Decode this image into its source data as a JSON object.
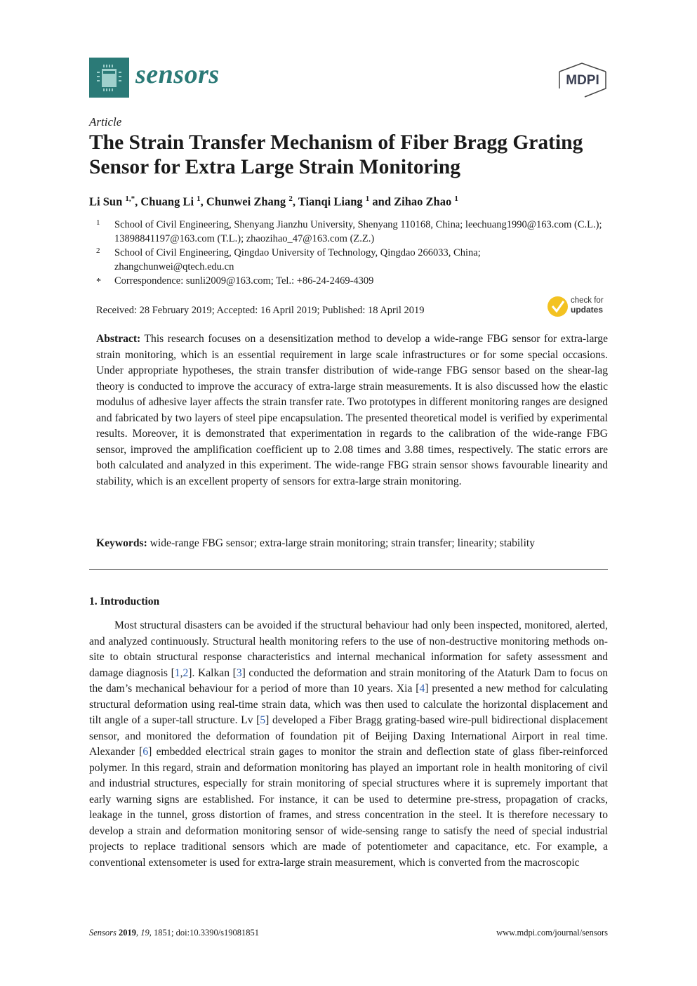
{
  "header": {
    "journal": "sensors",
    "publisher": "MDPI"
  },
  "article_type": "Article",
  "title": "The Strain Transfer Mechanism of Fiber Bragg Grating Sensor for Extra Large Strain Monitoring",
  "authors": [
    {
      "name": "Li Sun",
      "sup": "1,*"
    },
    {
      "name": "Chuang Li",
      "sup": "1"
    },
    {
      "name": "Chunwei Zhang",
      "sup": "2"
    },
    {
      "name": "Tianqi Liang",
      "sup": "1"
    },
    {
      "name": "Zihao Zhao",
      "sup": "1"
    }
  ],
  "author_sep": {
    "comma": ", ",
    "and": " and "
  },
  "affiliations": [
    {
      "mark": "1",
      "text": "School of Civil Engineering, Shenyang Jianzhu University, Shenyang 110168, China; leechuang1990@163.com (C.L.); 13898841197@163.com (T.L.); zhaozihao_47@163.com (Z.Z.)"
    },
    {
      "mark": "2",
      "text": "School of Civil Engineering, Qingdao University of Technology, Qingdao 266033, China; zhangchunwei@qtech.edu.cn"
    },
    {
      "mark": "*",
      "text": "Correspondence: sunli2009@163.com; Tel.: +86-24-2469-4309"
    }
  ],
  "dates": "Received: 28 February 2019; Accepted: 16 April 2019; Published: 18 April 2019",
  "check_updates": {
    "line1": "check for",
    "line2": "updates"
  },
  "abstract": {
    "label": "Abstract:",
    "text": " This research focuses on a desensitization method to develop a wide-range FBG sensor for extra-large strain monitoring, which is an essential requirement in large scale infrastructures or for some special occasions. Under appropriate hypotheses, the strain transfer distribution of wide-range FBG sensor based on the shear-lag theory is conducted to improve the accuracy of extra-large strain measurements. It is also discussed how the elastic modulus of adhesive layer affects the strain transfer rate. Two prototypes in different monitoring ranges are designed and fabricated by two layers of steel pipe encapsulation. The presented theoretical model is verified by experimental results. Moreover, it is demonstrated that experimentation in regards to the calibration of the wide-range FBG sensor, improved the amplification coefficient up to 2.08 times and 3.88 times, respectively. The static errors are both calculated and analyzed in this experiment. The wide-range FBG strain sensor shows favourable linearity and stability, which is an excellent property of sensors for extra-large strain monitoring."
  },
  "keywords": {
    "label": "Keywords:",
    "text": " wide-range FBG sensor; extra-large strain monitoring; strain transfer; linearity; stability"
  },
  "section": "1. Introduction",
  "intro": [
    {
      "t": "Most structural disasters can be avoided if the structural behaviour had only been inspected, monitored, alerted, and analyzed continuously. Structural health monitoring refers to the use of non-destructive monitoring methods on-site to obtain structural response characteristics and internal mechanical information for safety assessment and damage diagnosis ["
    },
    {
      "r": "1"
    },
    {
      "t": ","
    },
    {
      "r": "2"
    },
    {
      "t": "]. Kalkan ["
    },
    {
      "r": "3"
    },
    {
      "t": "] conducted the deformation and strain monitoring of the Ataturk Dam to focus on the dam’s mechanical behaviour for a period of more than 10 years. Xia ["
    },
    {
      "r": "4"
    },
    {
      "t": "] presented a new method for calculating structural deformation using real-time strain data, which was then used to calculate the horizontal displacement and tilt angle of a super-tall structure. Lv ["
    },
    {
      "r": "5"
    },
    {
      "t": "] developed a Fiber Bragg grating-based wire-pull bidirectional displacement sensor, and monitored the deformation of foundation pit of Beijing Daxing International Airport in real time. Alexander ["
    },
    {
      "r": "6"
    },
    {
      "t": "] embedded electrical strain gages to monitor the strain and deflection state of glass fiber-reinforced polymer. In this regard, strain and deformation monitoring has played an important role in health monitoring of civil and industrial structures, especially for strain monitoring of special structures where it is supremely important that early warning signs are established. For instance, it can be used to determine pre-stress, propagation of cracks, leakage in the tunnel, gross distortion of frames, and stress concentration in the steel. It is therefore necessary to develop a strain and deformation monitoring sensor of wide-sensing range to satisfy the need of special industrial projects to replace traditional sensors which are made of potentiometer and capacitance, etc. For example, a conventional extensometer is used for extra-large strain measurement, which is converted from the macroscopic"
    }
  ],
  "footer": {
    "journal": "Sensors",
    "year": "2019",
    "volume": "19",
    "rest": ", 1851; doi:10.3390/s19081851",
    "url": "www.mdpi.com/journal/sensors"
  },
  "colors": {
    "brand": "#2b7a77",
    "link": "#2a5db0",
    "badge": "#f3c221"
  }
}
